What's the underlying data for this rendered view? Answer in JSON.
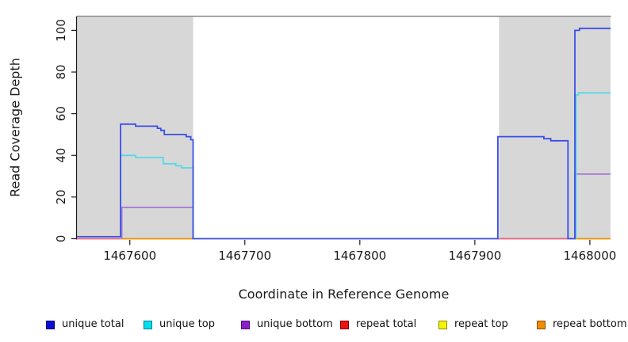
{
  "chart_data": {
    "type": "line",
    "title": "",
    "xlabel": "Coordinate in Reference Genome",
    "ylabel": "Read Coverage Depth",
    "xlim": [
      1467554,
      1468018
    ],
    "ylim": [
      0,
      106.8
    ],
    "x_ticks": [
      1467600,
      1467700,
      1467800,
      1467900,
      1468000
    ],
    "y_ticks": [
      0,
      20,
      40,
      60,
      80,
      100
    ],
    "grid": false,
    "legend_position": "bottom",
    "shade_color": "#d7d7d7",
    "top_border_color": "#8a8a8a",
    "axis_color": "#1a1a1a",
    "shaded_regions": [
      {
        "x0": 1467554,
        "x1": 1467655
      },
      {
        "x0": 1467921,
        "x1": 1468018
      }
    ],
    "series": [
      {
        "name": "unique total",
        "line_color": "#3a4ee8",
        "legend_fill": "#0d0dd9",
        "legend_border": "#00006b",
        "segments": [
          [
            [
              1467554,
              1
            ],
            [
              1467592,
              1
            ],
            [
              1467592,
              55
            ],
            [
              1467605,
              55
            ],
            [
              1467605,
              54
            ],
            [
              1467624,
              54
            ],
            [
              1467624,
              53
            ],
            [
              1467627,
              53
            ],
            [
              1467627,
              52
            ],
            [
              1467630,
              52
            ],
            [
              1467630,
              50
            ],
            [
              1467649,
              50
            ],
            [
              1467649,
              49
            ],
            [
              1467653,
              49
            ],
            [
              1467653,
              47.5
            ],
            [
              1467655,
              47.5
            ],
            [
              1467655,
              0
            ],
            [
              1467920,
              0
            ],
            [
              1467920,
              49
            ],
            [
              1467960,
              49
            ],
            [
              1467960,
              48
            ],
            [
              1467966,
              48
            ],
            [
              1467966,
              47
            ],
            [
              1467981,
              47
            ],
            [
              1467981,
              0
            ],
            [
              1467987,
              0
            ],
            [
              1467987,
              100
            ],
            [
              1467991,
              100
            ],
            [
              1467991,
              101
            ],
            [
              1468018,
              101
            ]
          ]
        ]
      },
      {
        "name": "unique top",
        "line_color": "#55d8e8",
        "legend_fill": "#00e0f0",
        "legend_border": "#007d8c",
        "segments": [
          [
            [
              1467592,
              0
            ],
            [
              1467592,
              40
            ],
            [
              1467605,
              40
            ],
            [
              1467605,
              39
            ],
            [
              1467629,
              39
            ],
            [
              1467629,
              36
            ],
            [
              1467640,
              36
            ],
            [
              1467640,
              35
            ],
            [
              1467645,
              35
            ],
            [
              1467645,
              34
            ],
            [
              1467655,
              34
            ],
            [
              1467655,
              0
            ]
          ],
          [
            [
              1467988,
              0
            ],
            [
              1467988,
              69
            ],
            [
              1467990,
              69
            ],
            [
              1467990,
              70
            ],
            [
              1468018,
              70
            ]
          ]
        ]
      },
      {
        "name": "unique bottom",
        "line_color": "#a877d4",
        "legend_fill": "#8b1fc8",
        "legend_border": "#530d7a",
        "segments": [
          [
            [
              1467593,
              0
            ],
            [
              1467593,
              15
            ],
            [
              1467655,
              15
            ],
            [
              1467655,
              0
            ]
          ],
          [
            [
              1467987,
              0
            ],
            [
              1467987,
              31
            ],
            [
              1468018,
              31
            ]
          ]
        ]
      },
      {
        "name": "repeat total",
        "line_color": "#ea6682",
        "legend_fill": "#ee1111",
        "legend_border": "#7d0000",
        "segments": [
          [
            [
              1467554,
              0
            ],
            [
              1467592,
              0
            ]
          ],
          [
            [
              1467920,
              0
            ],
            [
              1467981,
              0
            ]
          ]
        ]
      },
      {
        "name": "repeat top",
        "line_color": "#f0f000",
        "legend_fill": "#f5f500",
        "legend_border": "#8c8c00",
        "segments": []
      },
      {
        "name": "repeat bottom",
        "line_color": "#f39300",
        "legend_fill": "#f28c00",
        "legend_border": "#8a5200",
        "segments": [
          [
            [
              1467592,
              0
            ],
            [
              1467655,
              0
            ]
          ],
          [
            [
              1467987,
              0
            ],
            [
              1468018,
              0
            ]
          ]
        ]
      }
    ]
  }
}
